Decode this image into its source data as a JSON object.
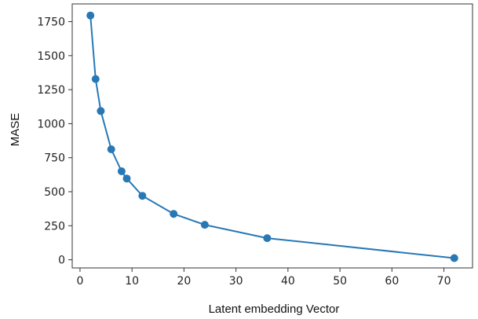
{
  "chart_data": {
    "type": "line",
    "title": "",
    "xlabel": "Latent embedding Vector",
    "ylabel": "MASE",
    "xlim": [
      -1.5,
      75.5
    ],
    "ylim": [
      -60,
      1880
    ],
    "x_ticks": [
      0,
      10,
      20,
      30,
      40,
      50,
      60,
      70
    ],
    "y_ticks": [
      0,
      250,
      500,
      750,
      1000,
      1250,
      1500,
      1750
    ],
    "grid": false,
    "series": [
      {
        "color": "#2878b5",
        "marker": "circle",
        "x": [
          2,
          3,
          4,
          6,
          8,
          9,
          12,
          18,
          24,
          36,
          72
        ],
        "y": [
          1795,
          1328,
          1093,
          812,
          650,
          597,
          470,
          337,
          257,
          159,
          12
        ]
      }
    ]
  }
}
